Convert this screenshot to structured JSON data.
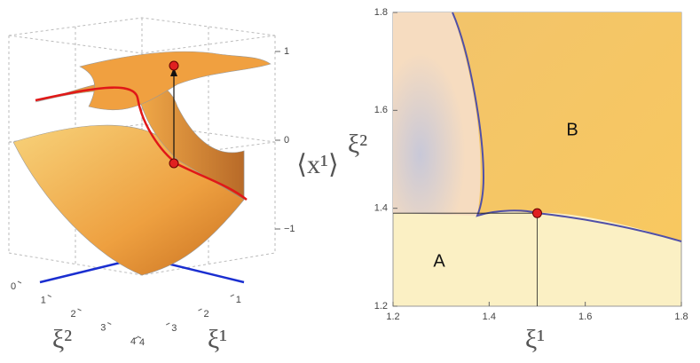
{
  "chart_data": [
    {
      "type": "surface3d",
      "zlabel": "⟨x¹⟩",
      "xlabel": "ξ¹",
      "ylabel": "ξ²",
      "zlim": [
        -1.2,
        1.2
      ],
      "zticks": [
        1,
        0,
        {
          "value": -1,
          "label": "−1"
        }
      ],
      "xlim": [
        0,
        4
      ],
      "xticks": [
        1,
        2,
        3,
        4
      ],
      "ylim": [
        0,
        4
      ],
      "yticks": [
        0,
        1,
        2,
        3,
        4
      ]
    },
    {
      "type": "density",
      "xlabel": "ξ¹",
      "ylabel": "ξ²",
      "xlim": [
        1.2,
        1.8
      ],
      "xticks": [
        1.2,
        1.4,
        1.6,
        1.8
      ],
      "ylim": [
        1.2,
        1.8
      ],
      "yticks": [
        1.2,
        1.4,
        1.6,
        1.8
      ],
      "regions": [
        "A",
        "B"
      ],
      "point": {
        "x": 1.5,
        "y": 1.39,
        "color": "#e02020"
      }
    }
  ]
}
